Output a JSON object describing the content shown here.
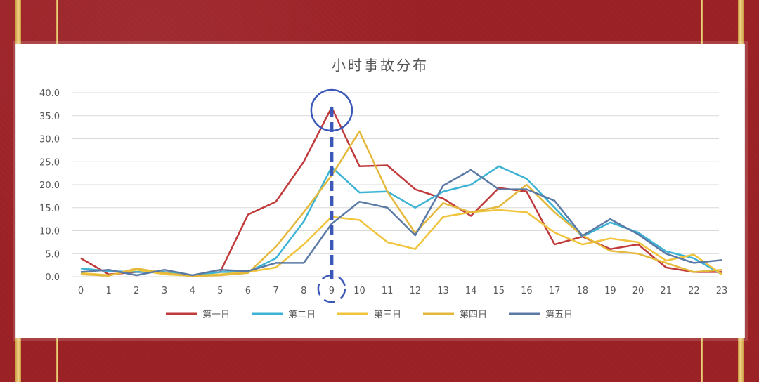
{
  "chart_data": {
    "type": "line",
    "title": "小时事故分布",
    "x": [
      0,
      1,
      2,
      3,
      4,
      5,
      6,
      7,
      8,
      9,
      10,
      11,
      12,
      13,
      14,
      15,
      16,
      17,
      18,
      19,
      20,
      21,
      22,
      23
    ],
    "x_ticks": [
      "0",
      "1",
      "2",
      "3",
      "4",
      "5",
      "6",
      "7",
      "8",
      "9",
      "10",
      "11",
      "12",
      "13",
      "14",
      "15",
      "16",
      "17",
      "18",
      "19",
      "20",
      "21",
      "22",
      "23"
    ],
    "ylim": [
      0,
      40
    ],
    "y_ticks": [
      "0.0",
      "5.0",
      "10.0",
      "15.0",
      "20.0",
      "25.0",
      "30.0",
      "35.0",
      "40.0"
    ],
    "grid": true,
    "legend_position": "bottom",
    "highlight": {
      "x": 9,
      "y": 36.8
    },
    "series": [
      {
        "name": "第一日",
        "color": "#c0393b",
        "values": [
          4.0,
          0.5,
          1.0,
          1.0,
          0.3,
          1.0,
          13.5,
          16.3,
          25.0,
          36.8,
          24.0,
          24.2,
          19.0,
          17.0,
          13.2,
          19.3,
          18.5,
          7.0,
          8.7,
          6.0,
          7.0,
          2.0,
          1.0,
          1.0
        ]
      },
      {
        "name": "第二日",
        "color": "#3cb3d4",
        "values": [
          1.8,
          1.2,
          1.0,
          1.0,
          0.2,
          1.0,
          1.0,
          4.0,
          12.0,
          23.8,
          18.3,
          18.5,
          15.0,
          18.5,
          20.0,
          24.0,
          21.3,
          15.0,
          8.7,
          11.8,
          9.6,
          5.5,
          4.0,
          0.5
        ]
      },
      {
        "name": "第三日",
        "color": "#f0c43c",
        "values": [
          0.8,
          0.3,
          1.5,
          0.5,
          0.2,
          0.5,
          1.0,
          2.0,
          7.0,
          13.0,
          12.3,
          7.5,
          6.0,
          13.0,
          14.0,
          14.5,
          14.0,
          9.6,
          7.0,
          8.3,
          7.5,
          3.5,
          4.8,
          0.5
        ]
      },
      {
        "name": "第四日",
        "color": "#e4b83b",
        "values": [
          0.5,
          0.2,
          1.8,
          0.8,
          0.1,
          0.3,
          0.8,
          6.5,
          14.0,
          22.0,
          31.6,
          18.5,
          9.5,
          16.0,
          14.0,
          15.2,
          20.0,
          14.0,
          9.0,
          5.6,
          5.0,
          3.0,
          1.0,
          1.5
        ]
      },
      {
        "name": "第五日",
        "color": "#5a79a5",
        "values": [
          1.0,
          1.5,
          0.3,
          1.5,
          0.3,
          1.5,
          1.2,
          3.0,
          3.0,
          11.5,
          16.3,
          15.0,
          9.0,
          19.8,
          23.2,
          19.0,
          19.0,
          16.5,
          8.9,
          12.5,
          9.2,
          5.0,
          3.0,
          3.6
        ]
      }
    ]
  }
}
